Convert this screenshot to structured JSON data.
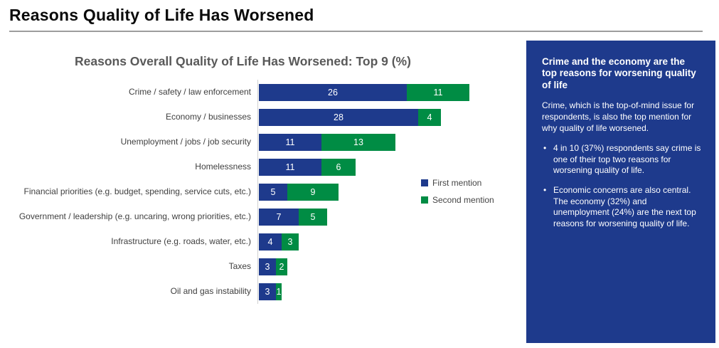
{
  "page": {
    "title": "Reasons Quality of Life Has Worsened"
  },
  "chart_data": {
    "type": "bar",
    "orientation": "horizontal",
    "stacked": true,
    "title": "Reasons Overall Quality of Life Has Worsened: Top 9 (%)",
    "categories": [
      "Crime / safety / law enforcement",
      "Economy / businesses",
      "Unemployment / jobs / job security",
      "Homelessness",
      "Financial priorities (e.g. budget, spending, service cuts, etc.)",
      "Government / leadership (e.g. uncaring, wrong priorities, etc.)",
      "Infrastructure (e.g. roads, water, etc.)",
      "Taxes",
      "Oil and gas instability"
    ],
    "series": [
      {
        "name": "First mention",
        "color": "#1e3a8c",
        "values": [
          26,
          28,
          11,
          11,
          5,
          7,
          4,
          3,
          3
        ]
      },
      {
        "name": "Second mention",
        "color": "#008c44",
        "values": [
          11,
          4,
          13,
          6,
          9,
          5,
          3,
          2,
          1
        ]
      }
    ],
    "xlim": [
      0,
      40
    ],
    "grid": false,
    "legend_position": "right",
    "value_labels": "inside"
  },
  "sidebar": {
    "background_color": "#1e3a8c",
    "heading": "Crime and the economy are the top reasons for worsening quality of life",
    "intro": "Crime, which is the top-of-mind issue for respondents, is also the top mention for why quality of life worsened.",
    "bullets": [
      "4 in 10 (37%) respondents say crime is one of their top two reasons for worsening quality of life.",
      "Economic concerns are also central. The economy (32%) and unemployment (24%) are the next top reasons for worsening quality of life."
    ]
  }
}
